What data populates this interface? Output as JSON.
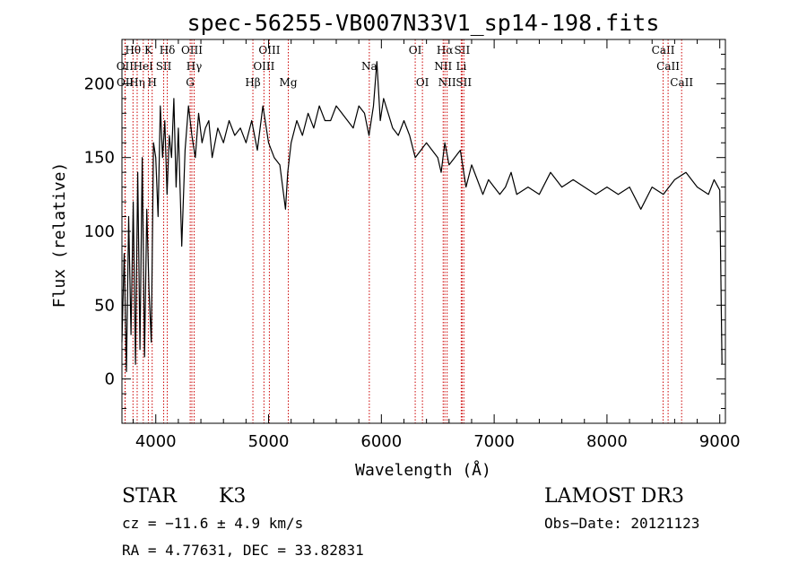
{
  "chart_data": {
    "type": "line",
    "title": "spec-56255-VB007N33V1_sp14-198.fits",
    "xlabel": "Wavelength (Å)",
    "ylabel": "Flux (relative)",
    "xlim": [
      3700,
      9050
    ],
    "ylim": [
      -30,
      230
    ],
    "x_ticks": [
      4000,
      5000,
      6000,
      7000,
      8000,
      9000
    ],
    "y_ticks": [
      0,
      50,
      100,
      150,
      200
    ],
    "grid": false,
    "series": [
      {
        "name": "flux",
        "x": [
          3700,
          3720,
          3740,
          3760,
          3780,
          3800,
          3820,
          3840,
          3860,
          3880,
          3900,
          3920,
          3940,
          3960,
          3980,
          4000,
          4020,
          4040,
          4060,
          4080,
          4100,
          4120,
          4140,
          4160,
          4180,
          4200,
          4230,
          4260,
          4290,
          4320,
          4350,
          4380,
          4410,
          4440,
          4470,
          4500,
          4550,
          4600,
          4650,
          4700,
          4750,
          4800,
          4850,
          4900,
          4950,
          5000,
          5050,
          5100,
          5150,
          5170,
          5200,
          5250,
          5300,
          5350,
          5400,
          5450,
          5500,
          5550,
          5600,
          5650,
          5700,
          5750,
          5800,
          5850,
          5890,
          5930,
          5960,
          5990,
          6020,
          6060,
          6100,
          6150,
          6200,
          6250,
          6300,
          6350,
          6400,
          6450,
          6500,
          6530,
          6563,
          6600,
          6650,
          6700,
          6750,
          6800,
          6850,
          6900,
          6950,
          7000,
          7050,
          7100,
          7150,
          7200,
          7300,
          7400,
          7500,
          7600,
          7700,
          7800,
          7900,
          8000,
          8100,
          8200,
          8300,
          8400,
          8500,
          8600,
          8700,
          8800,
          8900,
          8950,
          9000,
          9020
        ],
        "values": [
          25,
          85,
          5,
          110,
          30,
          120,
          10,
          140,
          20,
          150,
          15,
          115,
          60,
          25,
          160,
          150,
          110,
          185,
          150,
          175,
          125,
          165,
          150,
          190,
          130,
          170,
          90,
          155,
          185,
          165,
          150,
          180,
          160,
          170,
          175,
          150,
          170,
          160,
          175,
          165,
          170,
          160,
          175,
          155,
          185,
          160,
          150,
          145,
          115,
          140,
          160,
          175,
          165,
          180,
          170,
          185,
          175,
          175,
          185,
          180,
          175,
          170,
          185,
          180,
          165,
          185,
          215,
          175,
          190,
          180,
          170,
          165,
          175,
          165,
          150,
          155,
          160,
          155,
          150,
          140,
          160,
          145,
          150,
          155,
          130,
          145,
          135,
          125,
          135,
          130,
          125,
          130,
          140,
          125,
          130,
          125,
          140,
          130,
          135,
          130,
          125,
          130,
          125,
          130,
          115,
          130,
          125,
          135,
          140,
          130,
          125,
          135,
          128,
          10
        ]
      }
    ],
    "line_markers": [
      {
        "label": "Hθ",
        "x": 3798,
        "row": 1
      },
      {
        "label": "OII",
        "x": 3727,
        "row": 2
      },
      {
        "label": "OII",
        "x": 3729,
        "row": 3
      },
      {
        "label": "Hη",
        "x": 3835,
        "row": 3
      },
      {
        "label": "HeI",
        "x": 3889,
        "row": 2
      },
      {
        "label": "K",
        "x": 3934,
        "row": 1
      },
      {
        "label": "H",
        "x": 3968,
        "row": 3
      },
      {
        "label": "SII",
        "x": 4070,
        "row": 2
      },
      {
        "label": "Hδ",
        "x": 4102,
        "row": 1
      },
      {
        "label": "OIII",
        "x": 4320,
        "row": 1
      },
      {
        "label": "Hγ",
        "x": 4340,
        "row": 2
      },
      {
        "label": "G",
        "x": 4305,
        "row": 3
      },
      {
        "label": "Hβ",
        "x": 4861,
        "row": 3
      },
      {
        "label": "OIII",
        "x": 5007,
        "row": 1
      },
      {
        "label": "OIII",
        "x": 4959,
        "row": 2
      },
      {
        "label": "Mg",
        "x": 5175,
        "row": 3
      },
      {
        "label": "Na",
        "x": 5893,
        "row": 2
      },
      {
        "label": "OI",
        "x": 6300,
        "row": 1
      },
      {
        "label": "OI",
        "x": 6364,
        "row": 3
      },
      {
        "label": "Hα",
        "x": 6563,
        "row": 1
      },
      {
        "label": "NII",
        "x": 6548,
        "row": 2
      },
      {
        "label": "NII",
        "x": 6583,
        "row": 3
      },
      {
        "label": "SII",
        "x": 6716,
        "row": 1
      },
      {
        "label": "Li",
        "x": 6708,
        "row": 2
      },
      {
        "label": "SII",
        "x": 6731,
        "row": 3
      },
      {
        "label": "CaII",
        "x": 8498,
        "row": 1
      },
      {
        "label": "CaII",
        "x": 8542,
        "row": 2
      },
      {
        "label": "CaII",
        "x": 8662,
        "row": 3
      }
    ]
  },
  "info": {
    "object_class": "STAR",
    "subclass": "K3",
    "survey": "LAMOST DR3",
    "cz": "cz = −11.6 ± 4.9 km/s",
    "obs_date": "Obs−Date: 20121123",
    "coords": "RA =   4.77631, DEC =  33.82831"
  },
  "colors": {
    "spectrum": "#000000",
    "marker_lines": "#cc0000",
    "axes": "#000000",
    "background": "#ffffff"
  }
}
